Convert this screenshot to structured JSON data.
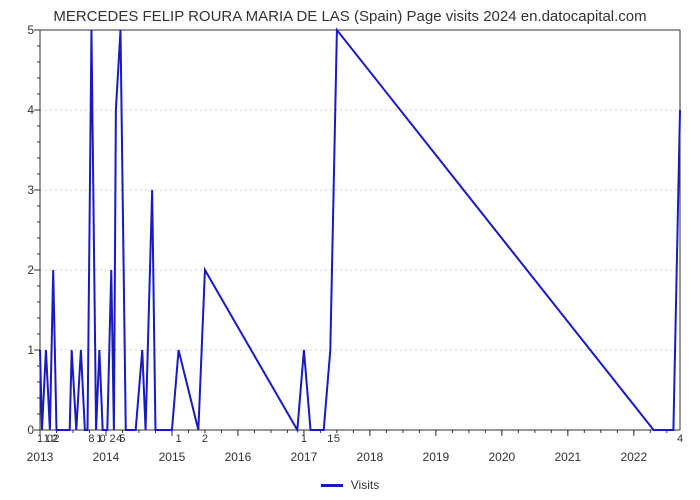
{
  "chart": {
    "type": "line",
    "title": "MERCEDES FELIP ROURA MARIA DE LAS (Spain) Page visits 2024 en.datocapital.com",
    "title_fontsize": 15,
    "background_color": "#ffffff",
    "plot_border_color": "#333333",
    "plot_border_width": 1,
    "grid_color": "#cccccc",
    "grid_dash": "2,3",
    "x_range": [
      2013.0,
      2022.7
    ],
    "y_range": [
      0,
      5
    ],
    "y_ticks": [
      0,
      1,
      2,
      3,
      4,
      5
    ],
    "y_minor_step": 0.2,
    "x_ticks": [
      2013,
      2014,
      2015,
      2016,
      2017,
      2018,
      2019,
      2020,
      2021,
      2022
    ],
    "x_minor_step": 0.25,
    "tick_fontsize": 12,
    "annotation_fontsize": 11,
    "series": {
      "name": "Visits",
      "color": "#1919c5",
      "line_width": 2,
      "x": [
        2013.0,
        2013.03,
        2013.09,
        2013.15,
        2013.2,
        2013.25,
        2013.3,
        2013.35,
        2013.4,
        2013.45,
        2013.48,
        2013.55,
        2013.62,
        2013.68,
        2013.72,
        2013.78,
        2013.85,
        2013.9,
        2013.95,
        2014.02,
        2014.08,
        2014.12,
        2014.15,
        2014.22,
        2014.3,
        2014.35,
        2014.45,
        2014.55,
        2014.6,
        2014.7,
        2014.75,
        2014.8,
        2014.9,
        2015.0,
        2015.1,
        2015.4,
        2015.5,
        2016.9,
        2017.0,
        2017.1,
        2017.3,
        2017.4,
        2017.5,
        2022.3,
        2022.5,
        2022.6,
        2022.7
      ],
      "y": [
        1,
        0,
        1,
        0,
        2,
        0,
        0,
        0,
        0,
        0,
        1,
        0,
        1,
        0,
        0,
        8,
        0,
        1,
        0,
        0,
        2,
        0,
        4,
        5,
        0,
        0,
        0,
        1,
        0,
        3,
        0,
        0,
        0,
        0,
        1,
        0,
        2,
        0,
        1,
        0,
        0,
        1,
        5,
        0,
        0,
        0,
        4
      ],
      "annot_x": [
        2013.0,
        2013.1,
        2013.15,
        2013.22,
        2013.25,
        2013.78,
        2013.9,
        2013.95,
        2014.1,
        2014.2,
        2014.25,
        2015.1,
        2015.5,
        2017.0,
        2017.4,
        2017.5,
        2022.7
      ],
      "annot_y": [
        1,
        1,
        0,
        2,
        2,
        8,
        1,
        0,
        2,
        4,
        5,
        1,
        2,
        1,
        1,
        5,
        4
      ],
      "annot_text": [
        "1",
        "1",
        "0",
        "2",
        "2",
        "8",
        "1",
        "0",
        "2",
        "4",
        "5",
        "1",
        "2",
        "1",
        "1",
        "5",
        "4"
      ]
    },
    "legend": {
      "label": "Visits",
      "color": "#1919c5",
      "position": "bottom-center"
    }
  }
}
